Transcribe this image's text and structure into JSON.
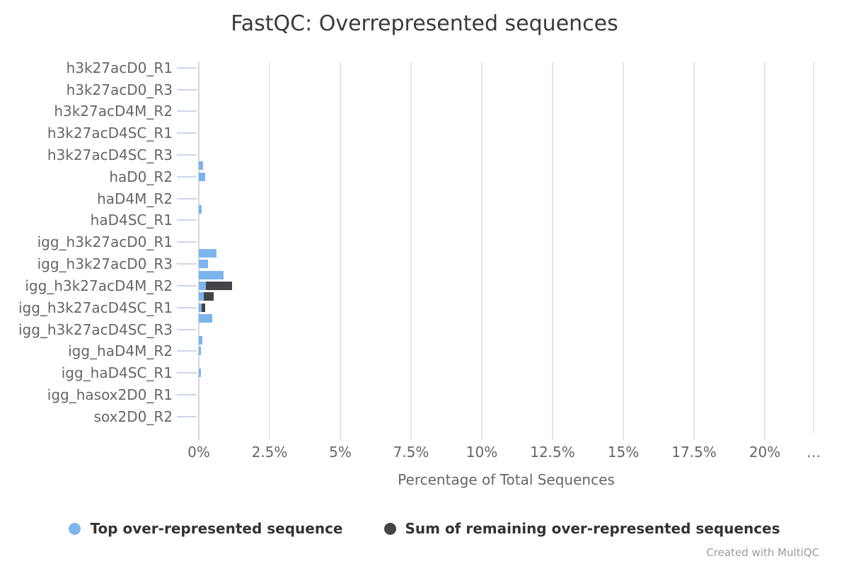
{
  "title": "FastQC: Overrepresented sequences",
  "xlabel": "Percentage of Total Sequences",
  "watermark": "Created with MultiQC",
  "colors": {
    "top_sequence": "#7cb5ec",
    "remaining_sequences": "#434348",
    "axis_line": "#ccd6eb",
    "gridline": "#e6e6e6",
    "tick_label": "#666666",
    "title_text": "#3a3a3a",
    "legend_text": "#333333",
    "watermark_text": "#9b9b9b"
  },
  "legend": [
    {
      "label": "Top over-represented sequence",
      "color": "#7cb5ec"
    },
    {
      "label": "Sum of remaining over-represented sequences",
      "color": "#434348"
    }
  ],
  "chart_data": {
    "type": "bar",
    "orientation": "horizontal",
    "stacked": true,
    "title": "FastQC: Overrepresented sequences",
    "xlabel": "Percentage of Total Sequences",
    "ylabel": "",
    "x_ticks": [
      "0%",
      "2.5%",
      "5%",
      "7.5%",
      "10%",
      "12.5%",
      "15%",
      "17.5%",
      "20%",
      "…"
    ],
    "xlim": [
      0,
      21.7
    ],
    "grid": "vertical",
    "legend_position": "bottom",
    "series_names": [
      "Top over-represented sequence",
      "Sum of remaining over-represented sequences"
    ],
    "note": "34 category rows; axis labels shown for every other row only; values in percent",
    "rows": [
      {
        "label": "h3k27acD0_R1",
        "top": 0,
        "remaining": 0
      },
      {
        "label": "",
        "top": 0,
        "remaining": 0
      },
      {
        "label": "h3k27acD0_R3",
        "top": 0,
        "remaining": 0
      },
      {
        "label": "",
        "top": 0,
        "remaining": 0
      },
      {
        "label": "h3k27acD4M_R2",
        "top": 0,
        "remaining": 0
      },
      {
        "label": "",
        "top": 0,
        "remaining": 0
      },
      {
        "label": "h3k27acD4SC_R1",
        "top": 0,
        "remaining": 0
      },
      {
        "label": "",
        "top": 0,
        "remaining": 0
      },
      {
        "label": "h3k27acD4SC_R3",
        "top": 0,
        "remaining": 0
      },
      {
        "label": "",
        "top": 0.15,
        "remaining": 0
      },
      {
        "label": "haD0_R2",
        "top": 0.23,
        "remaining": 0
      },
      {
        "label": "",
        "top": 0,
        "remaining": 0
      },
      {
        "label": "haD4M_R2",
        "top": 0,
        "remaining": 0
      },
      {
        "label": "",
        "top": 0.11,
        "remaining": 0
      },
      {
        "label": "haD4SC_R1",
        "top": 0,
        "remaining": 0
      },
      {
        "label": "",
        "top": 0,
        "remaining": 0
      },
      {
        "label": "igg_h3k27acD0_R1",
        "top": 0,
        "remaining": 0
      },
      {
        "label": "",
        "top": 0.63,
        "remaining": 0
      },
      {
        "label": "igg_h3k27acD0_R3",
        "top": 0.32,
        "remaining": 0
      },
      {
        "label": "",
        "top": 0.88,
        "remaining": 0
      },
      {
        "label": "igg_h3k27acD4M_R2",
        "top": 0.24,
        "remaining": 0.94
      },
      {
        "label": "",
        "top": 0.17,
        "remaining": 0.35
      },
      {
        "label": "igg_h3k27acD4SC_R1",
        "top": 0.1,
        "remaining": 0.12
      },
      {
        "label": "",
        "top": 0.48,
        "remaining": 0
      },
      {
        "label": "igg_h3k27acD4SC_R3",
        "top": 0,
        "remaining": 0
      },
      {
        "label": "",
        "top": 0.13,
        "remaining": 0
      },
      {
        "label": "igg_haD4M_R2",
        "top": 0.07,
        "remaining": 0
      },
      {
        "label": "",
        "top": 0,
        "remaining": 0
      },
      {
        "label": "igg_haD4SC_R1",
        "top": 0.08,
        "remaining": 0
      },
      {
        "label": "",
        "top": 0,
        "remaining": 0
      },
      {
        "label": "igg_hasox2D0_R1",
        "top": 0,
        "remaining": 0
      },
      {
        "label": "",
        "top": 0,
        "remaining": 0
      },
      {
        "label": "sox2D0_R2",
        "top": 0,
        "remaining": 0
      },
      {
        "label": "",
        "top": 0,
        "remaining": 0
      }
    ]
  }
}
